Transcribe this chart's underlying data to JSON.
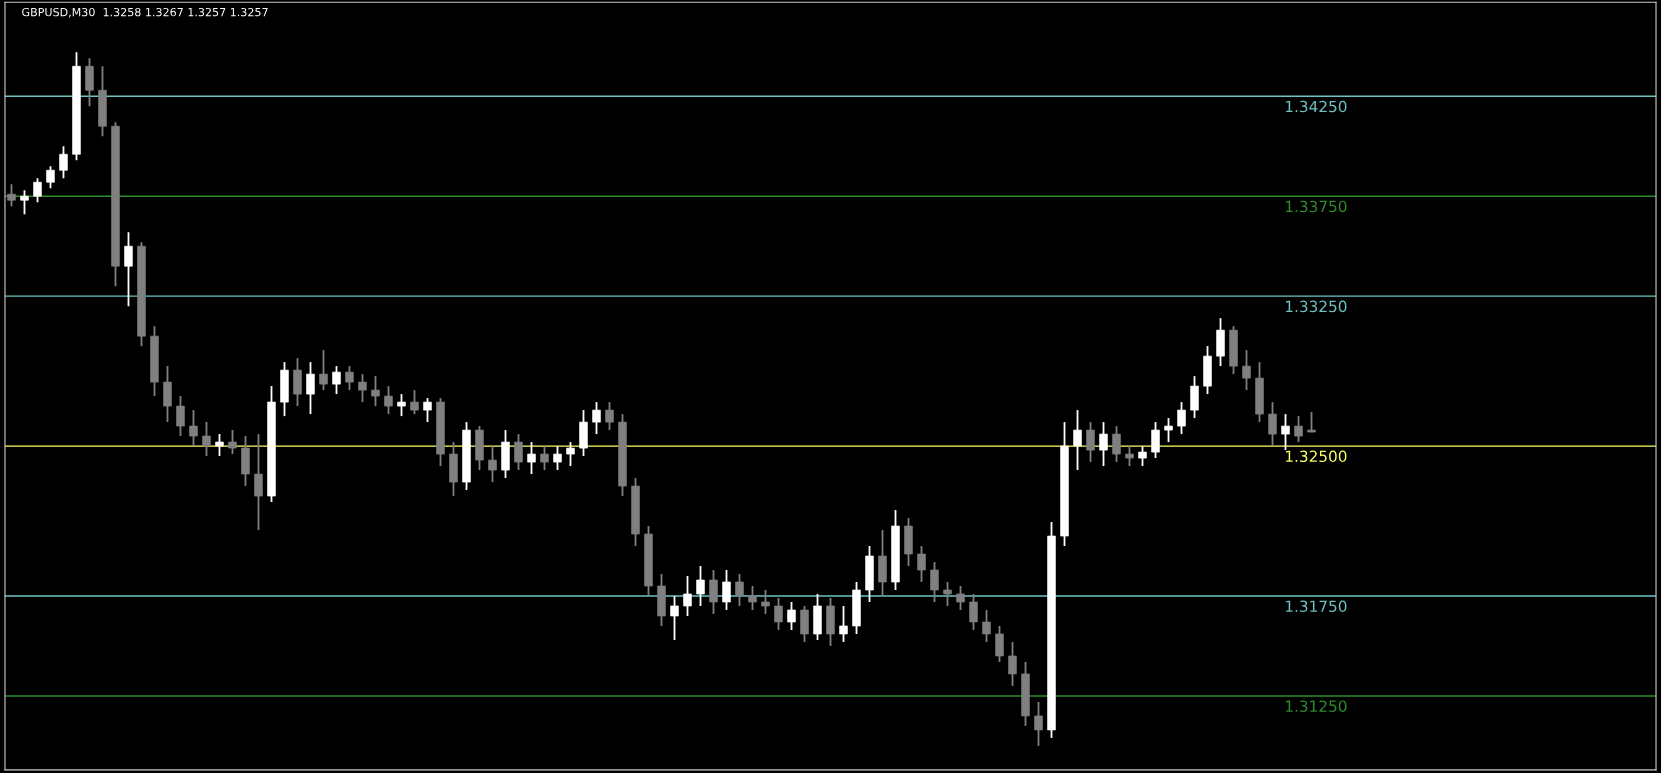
{
  "chart_data": {
    "type": "candlestick",
    "title": "GBPUSD,M30  1.3258 1.3267 1.3257 1.3257",
    "categories": [
      null,
      null,
      null,
      null,
      null,
      null,
      null,
      null,
      null,
      null,
      null,
      null,
      null,
      null,
      null,
      null,
      null,
      null,
      null,
      null,
      null,
      null,
      null,
      null,
      null,
      null,
      null,
      null,
      null,
      null,
      null,
      null,
      null,
      null,
      null,
      null,
      null,
      null,
      null,
      null,
      null,
      null,
      null,
      null,
      null,
      null,
      null,
      null,
      null,
      null,
      null,
      null,
      null,
      null,
      null,
      null,
      null,
      null,
      null,
      null,
      null,
      null,
      null,
      null,
      null,
      null,
      null,
      null,
      null,
      null,
      null,
      null,
      null,
      null,
      null,
      null,
      null,
      null,
      null,
      null,
      null,
      null,
      null,
      null,
      null,
      null,
      null,
      null,
      null,
      null,
      null,
      null,
      null,
      null,
      null,
      null,
      null,
      null,
      null,
      null,
      null,
      null,
      null,
      null,
      null,
      null,
      null,
      null,
      null,
      null,
      null,
      null,
      null,
      null,
      null,
      null,
      null,
      null,
      null,
      null,
      null,
      null,
      null,
      null,
      null,
      null,
      null
    ],
    "ohlc": [
      [
        1.3376,
        1.3381,
        1.337,
        1.3373
      ],
      [
        1.3373,
        1.3378,
        1.3366,
        1.3375
      ],
      [
        1.3375,
        1.3384,
        1.3372,
        1.3382
      ],
      [
        1.3382,
        1.339,
        1.3379,
        1.3388
      ],
      [
        1.3388,
        1.34,
        1.3384,
        1.3396
      ],
      [
        1.3396,
        1.3447,
        1.3393,
        1.344
      ],
      [
        1.344,
        1.3444,
        1.342,
        1.3428
      ],
      [
        1.3428,
        1.344,
        1.3405,
        1.341
      ],
      [
        1.341,
        1.3412,
        1.333,
        1.334
      ],
      [
        1.334,
        1.3357,
        1.332,
        1.335
      ],
      [
        1.335,
        1.3352,
        1.33,
        1.3305
      ],
      [
        1.3305,
        1.331,
        1.3275,
        1.3282
      ],
      [
        1.3282,
        1.329,
        1.3262,
        1.327
      ],
      [
        1.327,
        1.3275,
        1.3255,
        1.326
      ],
      [
        1.326,
        1.3268,
        1.325,
        1.3255
      ],
      [
        1.3255,
        1.3262,
        1.3245,
        1.325
      ],
      [
        1.325,
        1.3256,
        1.3245,
        1.3252
      ],
      [
        1.3252,
        1.3258,
        1.3246,
        1.3249
      ],
      [
        1.3249,
        1.3255,
        1.323,
        1.3236
      ],
      [
        1.3236,
        1.3256,
        1.3208,
        1.3225
      ],
      [
        1.3225,
        1.328,
        1.3222,
        1.3272
      ],
      [
        1.3272,
        1.3292,
        1.3265,
        1.3288
      ],
      [
        1.3288,
        1.3294,
        1.327,
        1.3276
      ],
      [
        1.3276,
        1.3292,
        1.3266,
        1.3286
      ],
      [
        1.3286,
        1.3298,
        1.3278,
        1.3281
      ],
      [
        1.3281,
        1.329,
        1.3276,
        1.3287
      ],
      [
        1.3287,
        1.329,
        1.3278,
        1.3282
      ],
      [
        1.3282,
        1.3286,
        1.3272,
        1.3278
      ],
      [
        1.3278,
        1.3285,
        1.327,
        1.3275
      ],
      [
        1.3275,
        1.328,
        1.3266,
        1.327
      ],
      [
        1.327,
        1.3276,
        1.3265,
        1.3272
      ],
      [
        1.3272,
        1.3278,
        1.3266,
        1.3268
      ],
      [
        1.3268,
        1.3274,
        1.3262,
        1.3272
      ],
      [
        1.3272,
        1.3274,
        1.324,
        1.3246
      ],
      [
        1.3246,
        1.3252,
        1.3225,
        1.3232
      ],
      [
        1.3232,
        1.3262,
        1.3228,
        1.3258
      ],
      [
        1.3258,
        1.326,
        1.3238,
        1.3243
      ],
      [
        1.3243,
        1.325,
        1.3232,
        1.3238
      ],
      [
        1.3238,
        1.3258,
        1.3234,
        1.3252
      ],
      [
        1.3252,
        1.3256,
        1.3238,
        1.3242
      ],
      [
        1.3242,
        1.3252,
        1.3236,
        1.3246
      ],
      [
        1.3246,
        1.325,
        1.3238,
        1.3242
      ],
      [
        1.3242,
        1.325,
        1.3238,
        1.3246
      ],
      [
        1.3246,
        1.3252,
        1.324,
        1.3249
      ],
      [
        1.3249,
        1.3268,
        1.3245,
        1.3262
      ],
      [
        1.3262,
        1.3272,
        1.3256,
        1.3268
      ],
      [
        1.3268,
        1.3272,
        1.3258,
        1.3262
      ],
      [
        1.3262,
        1.3266,
        1.3225,
        1.323
      ],
      [
        1.323,
        1.3234,
        1.32,
        1.3206
      ],
      [
        1.3206,
        1.321,
        1.3175,
        1.318
      ],
      [
        1.318,
        1.3186,
        1.316,
        1.3165
      ],
      [
        1.3165,
        1.3175,
        1.3153,
        1.317
      ],
      [
        1.317,
        1.3185,
        1.3165,
        1.3176
      ],
      [
        1.3176,
        1.319,
        1.317,
        1.3183
      ],
      [
        1.3183,
        1.3188,
        1.3166,
        1.3172
      ],
      [
        1.3172,
        1.3188,
        1.3168,
        1.3182
      ],
      [
        1.3182,
        1.3186,
        1.317,
        1.3175
      ],
      [
        1.3175,
        1.318,
        1.3168,
        1.3172
      ],
      [
        1.3172,
        1.3178,
        1.3166,
        1.317
      ],
      [
        1.317,
        1.3174,
        1.3158,
        1.3162
      ],
      [
        1.3162,
        1.3172,
        1.3158,
        1.3168
      ],
      [
        1.3168,
        1.317,
        1.3152,
        1.3156
      ],
      [
        1.3156,
        1.3176,
        1.3153,
        1.317
      ],
      [
        1.317,
        1.3174,
        1.315,
        1.3156
      ],
      [
        1.3156,
        1.317,
        1.3152,
        1.316
      ],
      [
        1.316,
        1.3182,
        1.3156,
        1.3178
      ],
      [
        1.3178,
        1.32,
        1.3172,
        1.3195
      ],
      [
        1.3195,
        1.3208,
        1.3175,
        1.3182
      ],
      [
        1.3182,
        1.3218,
        1.3178,
        1.321
      ],
      [
        1.321,
        1.3214,
        1.319,
        1.3196
      ],
      [
        1.3196,
        1.32,
        1.3182,
        1.3188
      ],
      [
        1.3188,
        1.3192,
        1.3172,
        1.3178
      ],
      [
        1.3178,
        1.3182,
        1.317,
        1.3176
      ],
      [
        1.3176,
        1.318,
        1.3168,
        1.3172
      ],
      [
        1.3172,
        1.3176,
        1.3158,
        1.3162
      ],
      [
        1.3162,
        1.3168,
        1.3152,
        1.3156
      ],
      [
        1.3156,
        1.316,
        1.3142,
        1.3145
      ],
      [
        1.3145,
        1.3152,
        1.313,
        1.3136
      ],
      [
        1.3136,
        1.3142,
        1.311,
        1.3115
      ],
      [
        1.3115,
        1.3122,
        1.31,
        1.3108
      ],
      [
        1.3108,
        1.3212,
        1.3104,
        1.3205
      ],
      [
        1.3205,
        1.3262,
        1.32,
        1.325
      ],
      [
        1.325,
        1.3268,
        1.3238,
        1.3258
      ],
      [
        1.3258,
        1.3262,
        1.3242,
        1.3248
      ],
      [
        1.3248,
        1.3262,
        1.324,
        1.3256
      ],
      [
        1.3256,
        1.326,
        1.3242,
        1.3246
      ],
      [
        1.3246,
        1.325,
        1.324,
        1.3244
      ],
      [
        1.3244,
        1.325,
        1.324,
        1.3247
      ],
      [
        1.3247,
        1.3262,
        1.3244,
        1.3258
      ],
      [
        1.3258,
        1.3264,
        1.3252,
        1.326
      ],
      [
        1.326,
        1.3272,
        1.3256,
        1.3268
      ],
      [
        1.3268,
        1.3285,
        1.3264,
        1.328
      ],
      [
        1.328,
        1.33,
        1.3276,
        1.3295
      ],
      [
        1.3295,
        1.3314,
        1.329,
        1.3308
      ],
      [
        1.3308,
        1.331,
        1.3286,
        1.329
      ],
      [
        1.329,
        1.3298,
        1.3278,
        1.3284
      ],
      [
        1.3284,
        1.3292,
        1.3262,
        1.3266
      ],
      [
        1.3266,
        1.3272,
        1.325,
        1.3256
      ],
      [
        1.3256,
        1.3266,
        1.3248,
        1.326
      ],
      [
        1.326,
        1.3265,
        1.3252,
        1.3255
      ],
      [
        1.3258,
        1.3267,
        1.3257,
        1.3257
      ],
      null,
      null,
      null,
      null,
      null,
      null,
      null,
      null,
      null,
      null,
      null,
      null,
      null,
      null,
      null,
      null,
      null,
      null,
      null,
      null,
      null,
      null,
      null,
      null,
      null,
      null
    ],
    "colors": [
      "#808080",
      "#ffffff",
      "#ffffff",
      "#ffffff",
      "#ffffff",
      "#ffffff",
      "#808080",
      "#808080",
      "#808080",
      "#ffffff",
      "#808080",
      "#808080",
      "#808080",
      "#808080",
      "#808080",
      "#808080",
      "#ffffff",
      "#808080",
      "#808080",
      "#808080",
      "#ffffff",
      "#ffffff",
      "#808080",
      "#ffffff",
      "#808080",
      "#ffffff",
      "#808080",
      "#808080",
      "#808080",
      "#808080",
      "#ffffff",
      "#808080",
      "#ffffff",
      "#808080",
      "#808080",
      "#ffffff",
      "#808080",
      "#808080",
      "#ffffff",
      "#808080",
      "#ffffff",
      "#808080",
      "#ffffff",
      "#ffffff",
      "#ffffff",
      "#ffffff",
      "#808080",
      "#808080",
      "#808080",
      "#808080",
      "#808080",
      "#ffffff",
      "#ffffff",
      "#ffffff",
      "#808080",
      "#ffffff",
      "#808080",
      "#808080",
      "#808080",
      "#808080",
      "#ffffff",
      "#808080",
      "#ffffff",
      "#808080",
      "#ffffff",
      "#ffffff",
      "#ffffff",
      "#808080",
      "#ffffff",
      "#808080",
      "#808080",
      "#808080",
      "#808080",
      "#808080",
      "#808080",
      "#808080",
      "#808080",
      "#808080",
      "#808080",
      "#808080",
      "#ffffff",
      "#ffffff",
      "#ffffff",
      "#808080",
      "#ffffff",
      "#808080",
      "#808080",
      "#ffffff",
      "#ffffff",
      "#ffffff",
      "#ffffff",
      "#ffffff",
      "#ffffff",
      "#ffffff",
      "#808080",
      "#808080",
      "#808080",
      "#808080",
      "#ffffff",
      "#808080",
      "#808080",
      null,
      null,
      null,
      null,
      null,
      null,
      null,
      null,
      null,
      null,
      null,
      null,
      null,
      null,
      null,
      null,
      null,
      null,
      null,
      null,
      null,
      null,
      null,
      null,
      null,
      null
    ],
    "ylim": [
      1.3088,
      1.3472
    ],
    "tick_labels": false,
    "ref_lines": [
      {
        "axis": "y",
        "value": 1.3425,
        "label": "1.34250",
        "color": "#6fc3c3"
      },
      {
        "axis": "y",
        "value": 1.3375,
        "label": "1.33750",
        "color": "#2e8b2e"
      },
      {
        "axis": "y",
        "value": 1.3325,
        "label": "1.33250",
        "color": "#6fc3c3"
      },
      {
        "axis": "y",
        "value": 1.325,
        "label": "1.32500",
        "color": "#ffff66"
      },
      {
        "axis": "y",
        "value": 1.3175,
        "label": "1.31750",
        "color": "#6fc3c3"
      },
      {
        "axis": "y",
        "value": 1.3125,
        "label": "1.31250",
        "color": "#2e8b2e"
      }
    ]
  }
}
